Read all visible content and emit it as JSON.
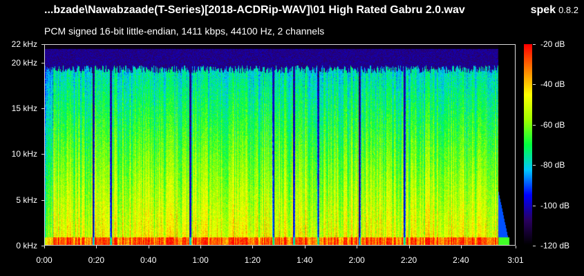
{
  "header": {
    "file_title": "...bzade\\Nawabzaade(T-Series)[2018-ACDRip-WAV]\\01 High Rated Gabru 2.0.wav",
    "app_name": "spek",
    "app_version": "0.8.2",
    "stream_info": "PCM signed 16-bit little-endian, 1411 kbps, 44100 Hz, 2 channels"
  },
  "frequency_axis": {
    "ticks": [
      "22 kHz",
      "20 kHz",
      "15 kHz",
      "10 kHz",
      "5 kHz",
      "0 kHz"
    ],
    "values_khz": [
      22,
      20,
      15,
      10,
      5,
      0
    ]
  },
  "time_axis": {
    "ticks": [
      "0:00",
      "0:20",
      "0:40",
      "1:00",
      "1:20",
      "1:40",
      "2:00",
      "2:20",
      "2:40",
      "3:01"
    ],
    "values_s": [
      0,
      20,
      40,
      60,
      80,
      100,
      120,
      140,
      160,
      181
    ]
  },
  "db_scale": {
    "ticks": [
      "-20 dB",
      "-40 dB",
      "-60 dB",
      "-80 dB",
      "-100 dB",
      "-120 dB"
    ],
    "values_db": [
      -20,
      -40,
      -60,
      -80,
      -100,
      -120
    ]
  },
  "colors": {
    "background": "#000000",
    "text": "#ffffff",
    "palette": [
      "#000000",
      "#2a0060",
      "#0000ff",
      "#00c8ff",
      "#00ff40",
      "#a0ff00",
      "#ffff00",
      "#ff8000",
      "#ff0000"
    ]
  }
}
